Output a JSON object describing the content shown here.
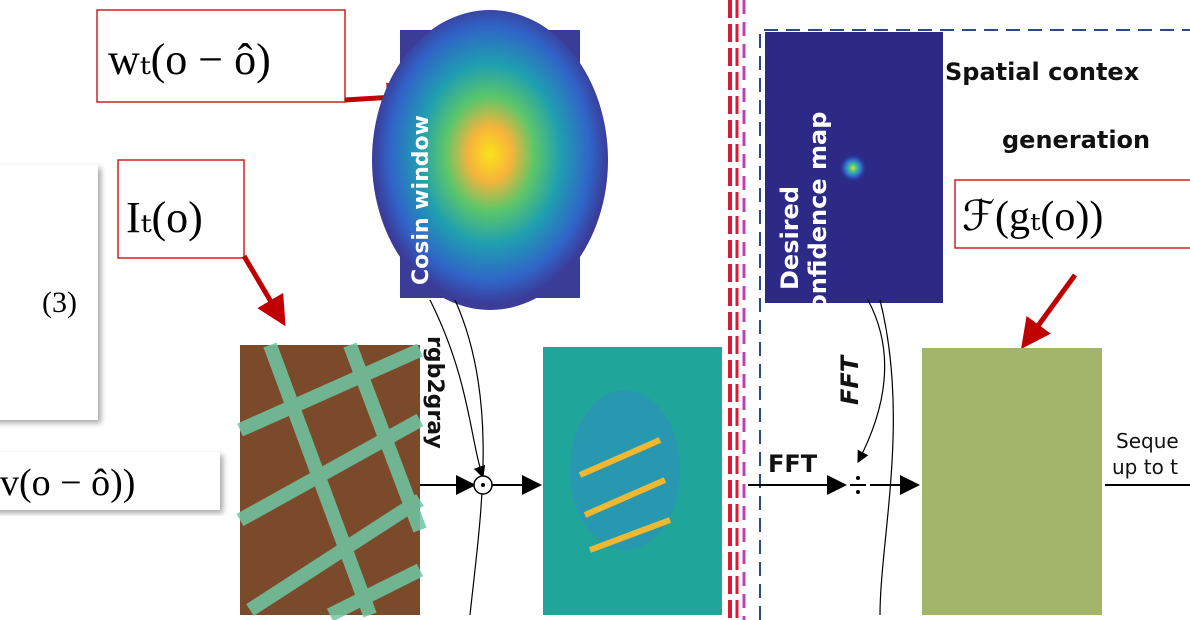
{
  "formulas": {
    "window_weight": "wₜ(o − ô)",
    "image_input": "Iₜ(o)",
    "equation_number": "(3)",
    "partial_term": "v(o − ô))",
    "fft_confidence": "ℱ(gₜ(o))"
  },
  "labels": {
    "cosin_window": "Cosin window",
    "rgb2gray": "rgb2gray",
    "fft_vertical": "FFT",
    "fft_horizontal": "FFT",
    "desired": "Desired",
    "confidence_map": "confidence map",
    "spatial_context": "Spatial contex",
    "generation": "generation",
    "sequence": "Seque",
    "up_to": "up to t"
  }
}
